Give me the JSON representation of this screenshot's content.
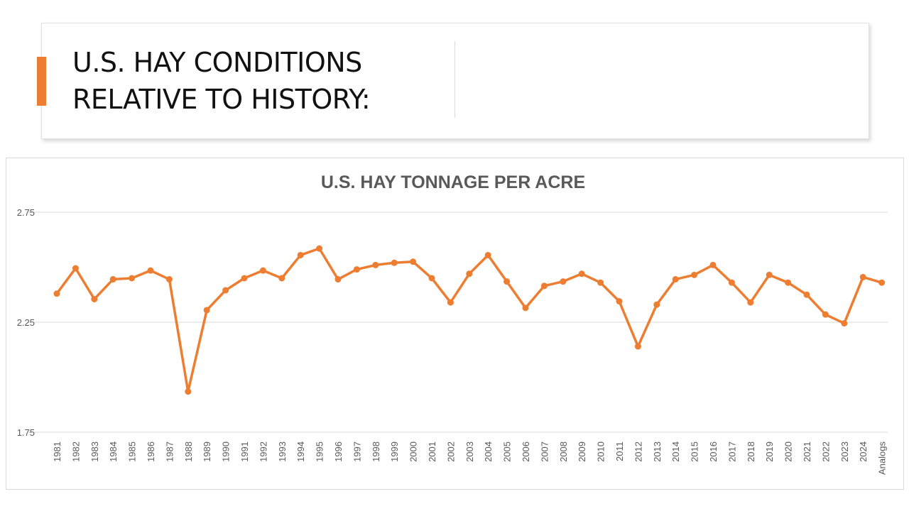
{
  "slide": {
    "title": "U.S. HAY CONDITIONS\nRELATIVE TO HISTORY:",
    "accent_color": "#ed7d31"
  },
  "chart_data": {
    "type": "line",
    "title": "U.S. HAY TONNAGE PER ACRE",
    "xlabel": "",
    "ylabel": "",
    "ylim": [
      1.75,
      2.75
    ],
    "yticks": [
      "1.75",
      "2.25",
      "2.75"
    ],
    "grid": true,
    "legend": "none",
    "line_color": "#ed7d31",
    "categories": [
      "1981",
      "1982",
      "1983",
      "1984",
      "1985",
      "1986",
      "1987",
      "1988",
      "1989",
      "1990",
      "1991",
      "1992",
      "1993",
      "1994",
      "1995",
      "1996",
      "1997",
      "1998",
      "1999",
      "2000",
      "2001",
      "2002",
      "2003",
      "2004",
      "2005",
      "2006",
      "2007",
      "2008",
      "2009",
      "2010",
      "2011",
      "2012",
      "2013",
      "2014",
      "2015",
      "2016",
      "2017",
      "2018",
      "2019",
      "2020",
      "2021",
      "2022",
      "2023",
      "2024",
      "Analogs"
    ],
    "series": [
      {
        "values": [
          2.38,
          2.495,
          2.355,
          2.445,
          2.45,
          2.485,
          2.445,
          1.935,
          2.305,
          2.395,
          2.45,
          2.485,
          2.45,
          2.555,
          2.585,
          2.445,
          2.49,
          2.51,
          2.52,
          2.525,
          2.45,
          2.34,
          2.47,
          2.555,
          2.435,
          2.315,
          2.415,
          2.435,
          2.47,
          2.43,
          2.345,
          2.14,
          2.33,
          2.445,
          2.465,
          2.51,
          2.43,
          2.34,
          2.465,
          2.43,
          2.375,
          2.285,
          2.245,
          2.455,
          2.43
        ]
      }
    ]
  }
}
